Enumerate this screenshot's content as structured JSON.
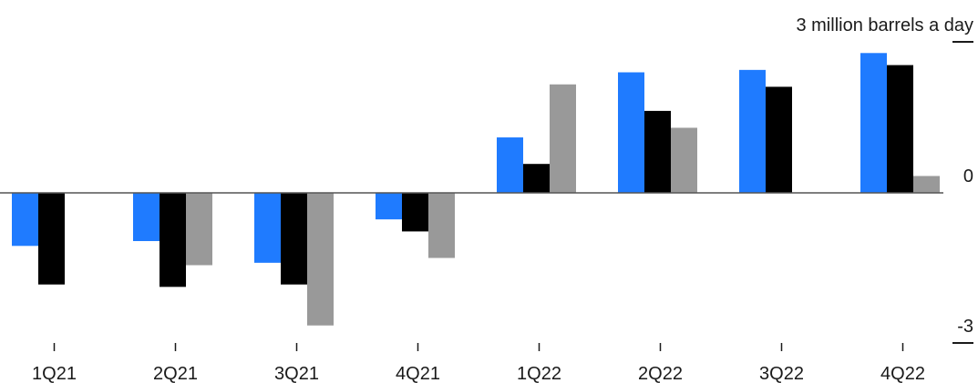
{
  "chart_data": {
    "type": "bar",
    "title": "",
    "xlabel": "",
    "ylabel": "",
    "unit_label": "3 million barrels a day",
    "ylim": [
      -3,
      3
    ],
    "y_ticks": [
      "0",
      "-3"
    ],
    "categories": [
      "1Q21",
      "2Q21",
      "3Q21",
      "4Q21",
      "1Q22",
      "2Q22",
      "3Q22",
      "4Q22"
    ],
    "series": [
      {
        "color": "#1f7bff",
        "values": [
          -1.1,
          -1.0,
          -1.45,
          -0.55,
          1.15,
          2.5,
          2.55,
          2.9
        ]
      },
      {
        "color": "#000000",
        "values": [
          -1.9,
          -1.95,
          -1.9,
          -0.8,
          0.6,
          1.7,
          2.2,
          2.65
        ]
      },
      {
        "color": "#999999",
        "values": [
          0.0,
          -1.5,
          -2.75,
          -1.35,
          2.25,
          1.35,
          0.0,
          0.35
        ]
      }
    ],
    "grid": false,
    "legend": "none"
  }
}
